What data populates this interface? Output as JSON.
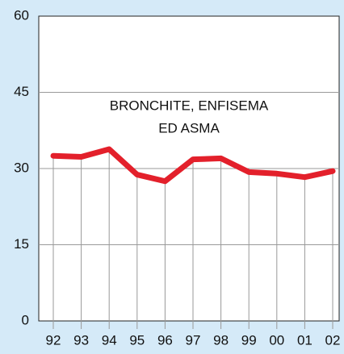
{
  "chart_data": {
    "type": "line",
    "annotation": [
      "BRONCHITE, ENFISEMA",
      "ED ASMA"
    ],
    "categories": [
      "92",
      "93",
      "94",
      "95",
      "96",
      "97",
      "98",
      "99",
      "00",
      "01",
      "02"
    ],
    "values": [
      32.5,
      32.3,
      33.8,
      28.8,
      27.5,
      31.8,
      32,
      29.3,
      29,
      28.3,
      29.5
    ],
    "color": "#e3202b",
    "ylim": [
      0,
      60
    ],
    "yticks": [
      0,
      15,
      30,
      45,
      60
    ],
    "grid": true
  }
}
